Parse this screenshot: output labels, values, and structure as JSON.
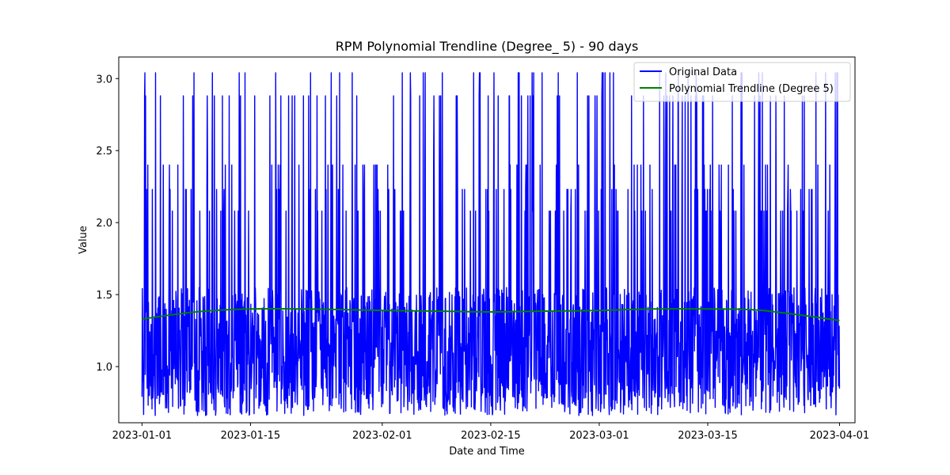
{
  "chart_data": {
    "type": "line",
    "title": "RPM Polynomial Trendline (Degree_ 5) - 90 days",
    "xlabel": "Date and Time",
    "ylabel": "Value",
    "xlim": [
      "2022-12-29",
      "2023-04-03"
    ],
    "ylim": [
      0.61,
      3.15
    ],
    "x_ticks": [
      "2023-01-01",
      "2023-01-15",
      "2023-02-01",
      "2023-02-15",
      "2023-03-01",
      "2023-03-15",
      "2023-04-01"
    ],
    "y_ticks": [
      1.0,
      1.5,
      2.0,
      2.5,
      3.0
    ],
    "y_tick_labels": [
      "1.0",
      "1.5",
      "2.0",
      "2.5",
      "3.0"
    ],
    "grid": false,
    "legend_position": "top-right",
    "series": [
      {
        "name": "Original Data",
        "color": "#0000ff",
        "x_range": [
          "2023-01-01",
          "2023-04-01"
        ],
        "value_range": [
          0.66,
          3.04
        ],
        "typical_band": [
          0.9,
          1.55
        ],
        "spike_levels": [
          2.08,
          2.23,
          2.4,
          2.88,
          3.04
        ],
        "note": "hourly measurements over 90 days, dense oscillation"
      },
      {
        "name": "Polynomial Trendline (Degree 5)",
        "color": "#008000",
        "x": [
          "2023-01-01",
          "2023-01-08",
          "2023-01-15",
          "2023-01-22",
          "2023-02-01",
          "2023-02-08",
          "2023-02-15",
          "2023-02-22",
          "2023-03-01",
          "2023-03-08",
          "2023-03-15",
          "2023-03-22",
          "2023-04-01"
        ],
        "values": [
          1.33,
          1.38,
          1.4,
          1.4,
          1.39,
          1.385,
          1.38,
          1.385,
          1.39,
          1.4,
          1.4,
          1.39,
          1.32
        ]
      }
    ]
  }
}
